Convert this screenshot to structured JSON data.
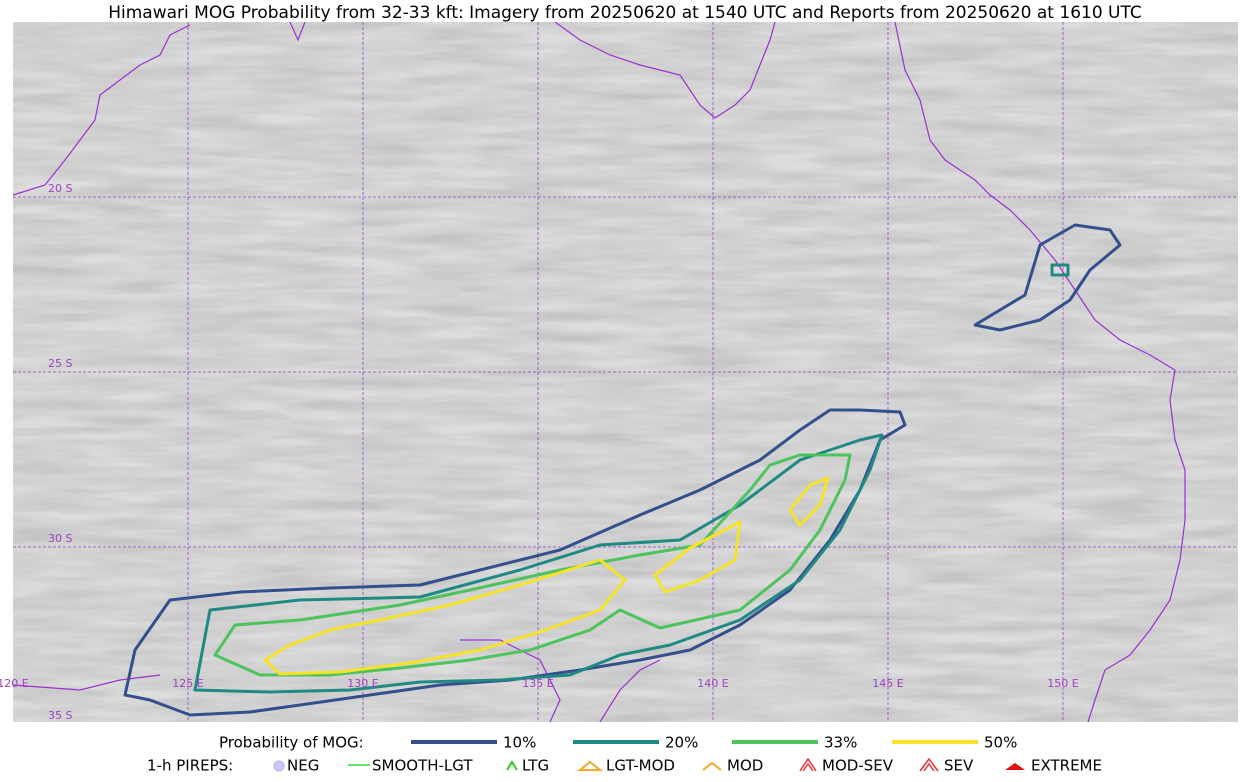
{
  "title": "Himawari MOG Probability from 32-33 kft: Imagery from 20250620 at 1540 UTC and Reports from 20250620 at 1610 UTC",
  "map": {
    "lon_labels": [
      "120 E",
      "125 E",
      "130 E",
      "135 E",
      "140 E",
      "145 E",
      "150 E"
    ],
    "lat_labels": [
      "20 S",
      "25 S",
      "30 S",
      "35 S"
    ]
  },
  "legend": {
    "probability_title": "Probability of MOG:",
    "levels": [
      {
        "label": "10%",
        "color": "#34508c"
      },
      {
        "label": "20%",
        "color": "#1f8a84"
      },
      {
        "label": "33%",
        "color": "#4cc35c"
      },
      {
        "label": "50%",
        "color": "#f7e22a"
      }
    ],
    "pireps_title": "1-h PIREPS:",
    "pireps": [
      "NEG",
      "SMOOTH-LGT",
      "LTG",
      "LGT-MOD",
      "MOD",
      "MOD-SEV",
      "SEV",
      "EXTREME"
    ]
  }
}
